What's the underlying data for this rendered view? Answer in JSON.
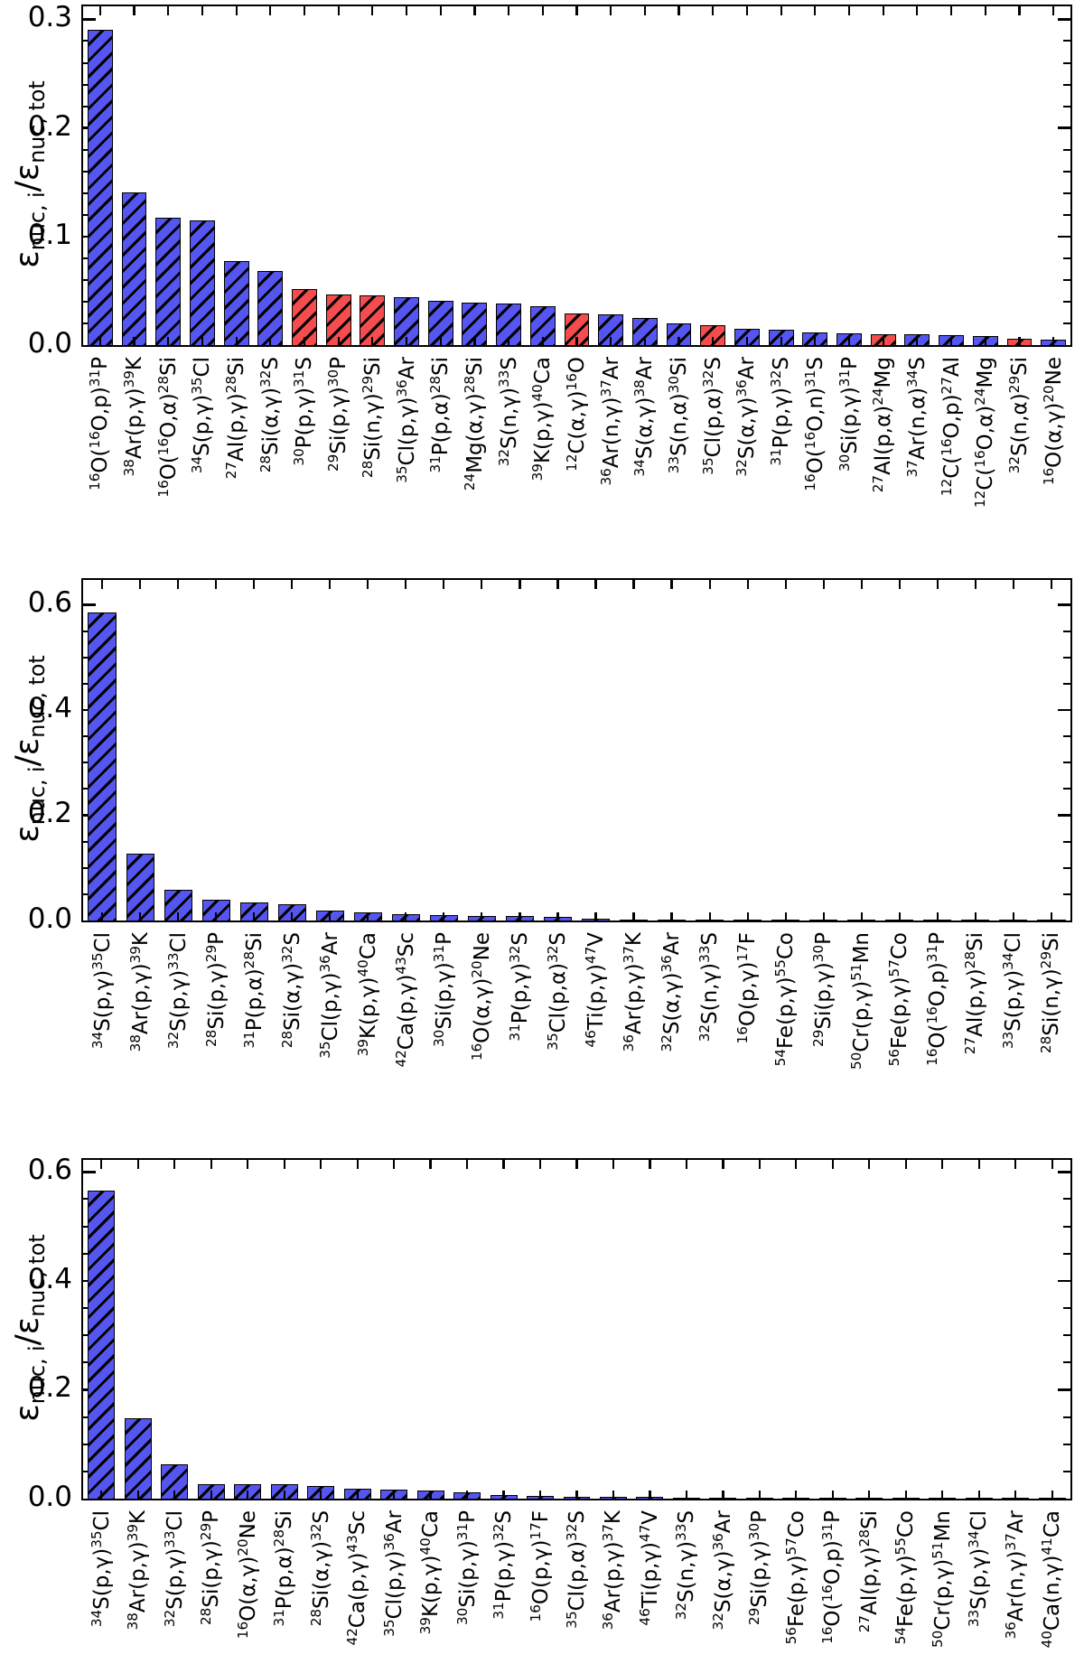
{
  "figure": {
    "background": "#ffffff",
    "axis_color": "#000000",
    "ylabel": "ε_{nuc, i}/ε_{nuc, tot}"
  },
  "colors": {
    "blue": "#5555f0",
    "red": "#f54d4d",
    "hatch": "#000000"
  },
  "chart_data": [
    {
      "type": "bar",
      "title": "",
      "xlabel": "",
      "ylabel": "ε_{nuc, i}/ε_{nuc, tot}",
      "ylim": [
        0,
        0.312
      ],
      "ytick_values": [
        0,
        0.1,
        0.2,
        0.3
      ],
      "ytick_labels": [
        "0.0",
        "0.1",
        "0.2",
        "0.3"
      ],
      "minor_tick_step": 0.02,
      "grid": false,
      "bars": [
        {
          "label": "^{16}O(^{16}O,p)^{31}P",
          "value": 0.29,
          "color": "blue"
        },
        {
          "label": "^{38}Ar(p,γ)^{39}K",
          "value": 0.141,
          "color": "blue"
        },
        {
          "label": "^{16}O(^{16}O,α)^{28}Si",
          "value": 0.117,
          "color": "blue"
        },
        {
          "label": "^{34}S(p,γ)^{35}Cl",
          "value": 0.115,
          "color": "blue"
        },
        {
          "label": "^{27}Al(p,γ)^{28}Si",
          "value": 0.077,
          "color": "blue"
        },
        {
          "label": "^{28}Si(α,γ)^{32}S",
          "value": 0.068,
          "color": "blue"
        },
        {
          "label": "^{30}P(p,γ)^{31}S",
          "value": 0.052,
          "color": "red"
        },
        {
          "label": "^{29}Si(p,γ)^{30}P",
          "value": 0.047,
          "color": "red"
        },
        {
          "label": "^{28}Si(n,γ)^{29}Si",
          "value": 0.046,
          "color": "red"
        },
        {
          "label": "^{35}Cl(p,γ)^{36}Ar",
          "value": 0.044,
          "color": "blue"
        },
        {
          "label": "^{31}P(p,α)^{28}Si",
          "value": 0.041,
          "color": "blue"
        },
        {
          "label": "^{24}Mg(α,γ)^{28}Si",
          "value": 0.039,
          "color": "blue"
        },
        {
          "label": "^{32}S(n,γ)^{33}S",
          "value": 0.038,
          "color": "blue"
        },
        {
          "label": "^{39}K(p,γ)^{40}Ca",
          "value": 0.036,
          "color": "blue"
        },
        {
          "label": "^{12}C(α,γ)^{16}O",
          "value": 0.029,
          "color": "red"
        },
        {
          "label": "^{36}Ar(n,γ)^{37}Ar",
          "value": 0.028,
          "color": "blue"
        },
        {
          "label": "^{34}S(α,γ)^{38}Ar",
          "value": 0.025,
          "color": "blue"
        },
        {
          "label": "^{33}S(n,α)^{30}Si",
          "value": 0.02,
          "color": "blue"
        },
        {
          "label": "^{35}Cl(p,α)^{32}S",
          "value": 0.018,
          "color": "red"
        },
        {
          "label": "^{32}S(α,γ)^{36}Ar",
          "value": 0.015,
          "color": "blue"
        },
        {
          "label": "^{31}P(p,γ)^{32}S",
          "value": 0.014,
          "color": "blue"
        },
        {
          "label": "^{16}O(^{16}O,n)^{31}S",
          "value": 0.012,
          "color": "blue"
        },
        {
          "label": "^{30}Si(p,γ)^{31}P",
          "value": 0.011,
          "color": "blue"
        },
        {
          "label": "^{27}Al(p,α)^{24}Mg",
          "value": 0.01,
          "color": "red"
        },
        {
          "label": "^{37}Ar(n,α)^{34}S",
          "value": 0.01,
          "color": "blue"
        },
        {
          "label": "^{12}C(^{16}O,p)^{27}Al",
          "value": 0.009,
          "color": "blue"
        },
        {
          "label": "^{12}C(^{16}O,α)^{24}Mg",
          "value": 0.008,
          "color": "blue"
        },
        {
          "label": "^{32}S(n,α)^{29}Si",
          "value": 0.006,
          "color": "red"
        },
        {
          "label": "^{16}O(α,γ)^{20}Ne",
          "value": 0.005,
          "color": "blue"
        }
      ]
    },
    {
      "type": "bar",
      "title": "",
      "xlabel": "",
      "ylabel": "ε_{nuc, i}/ε_{nuc, tot}",
      "ylim": [
        0,
        0.647
      ],
      "ytick_values": [
        0,
        0.2,
        0.4,
        0.6
      ],
      "ytick_labels": [
        "0.0",
        "0.2",
        "0.4",
        "0.6"
      ],
      "minor_tick_step": 0.05,
      "grid": false,
      "bars": [
        {
          "label": "^{34}S(p,γ)^{35}Cl",
          "value": 0.585,
          "color": "blue"
        },
        {
          "label": "^{38}Ar(p,γ)^{39}K",
          "value": 0.127,
          "color": "blue"
        },
        {
          "label": "^{32}S(p,γ)^{33}Cl",
          "value": 0.059,
          "color": "blue"
        },
        {
          "label": "^{28}Si(p,γ)^{29}P",
          "value": 0.039,
          "color": "blue"
        },
        {
          "label": "^{31}P(p,α)^{28}Si",
          "value": 0.035,
          "color": "blue"
        },
        {
          "label": "^{28}Si(α,γ)^{32}S",
          "value": 0.031,
          "color": "blue"
        },
        {
          "label": "^{35}Cl(p,γ)^{36}Ar",
          "value": 0.019,
          "color": "blue"
        },
        {
          "label": "^{39}K(p,γ)^{40}Ca",
          "value": 0.015,
          "color": "blue"
        },
        {
          "label": "^{42}Ca(p,γ)^{43}Sc",
          "value": 0.012,
          "color": "blue"
        },
        {
          "label": "^{30}Si(p,γ)^{31}P",
          "value": 0.01,
          "color": "blue"
        },
        {
          "label": "^{16}O(α,γ)^{20}Ne",
          "value": 0.009,
          "color": "blue"
        },
        {
          "label": "^{31}P(p,γ)^{32}S",
          "value": 0.008,
          "color": "blue"
        },
        {
          "label": "^{35}Cl(p,α)^{32}S",
          "value": 0.007,
          "color": "blue"
        },
        {
          "label": "^{46}Ti(p,γ)^{47}V",
          "value": 0.003,
          "color": "blue"
        },
        {
          "label": "^{36}Ar(p,γ)^{37}K",
          "value": 0.0025,
          "color": "blue"
        },
        {
          "label": "^{32}S(α,γ)^{36}Ar",
          "value": 0.002,
          "color": "blue"
        },
        {
          "label": "^{32}S(n,γ)^{33}S",
          "value": 0.002,
          "color": "blue"
        },
        {
          "label": "^{16}O(p,γ)^{17}F",
          "value": 0.002,
          "color": "blue"
        },
        {
          "label": "^{54}Fe(p,γ)^{55}Co",
          "value": 0.001,
          "color": "blue"
        },
        {
          "label": "^{29}Si(p,γ)^{30}P",
          "value": 0.001,
          "color": "blue"
        },
        {
          "label": "^{50}Cr(p,γ)^{51}Mn",
          "value": 0.0008,
          "color": "blue"
        },
        {
          "label": "^{56}Fe(p,γ)^{57}Co",
          "value": 0.0006,
          "color": "blue"
        },
        {
          "label": "^{16}O(^{16}O,p)^{31}P",
          "value": 0.0005,
          "color": "blue"
        },
        {
          "label": "^{27}Al(p,γ)^{28}Si",
          "value": 0.0004,
          "color": "blue"
        },
        {
          "label": "^{33}S(p,γ)^{34}Cl",
          "value": 0.0003,
          "color": "blue"
        },
        {
          "label": "^{28}Si(n,γ)^{29}Si",
          "value": 0.0003,
          "color": "blue"
        }
      ]
    },
    {
      "type": "bar",
      "title": "",
      "xlabel": "",
      "ylabel": "ε_{nuc, i}/ε_{nuc, tot}",
      "ylim": [
        0,
        0.622
      ],
      "ytick_values": [
        0,
        0.2,
        0.4,
        0.6
      ],
      "ytick_labels": [
        "0.0",
        "0.2",
        "0.4",
        "0.6"
      ],
      "minor_tick_step": 0.05,
      "grid": false,
      "bars": [
        {
          "label": "^{34}S(p,γ)^{35}Cl",
          "value": 0.565,
          "color": "blue"
        },
        {
          "label": "^{38}Ar(p,γ)^{39}K",
          "value": 0.148,
          "color": "blue"
        },
        {
          "label": "^{32}S(p,γ)^{33}Cl",
          "value": 0.063,
          "color": "blue"
        },
        {
          "label": "^{28}Si(p,γ)^{29}P",
          "value": 0.027,
          "color": "blue"
        },
        {
          "label": "^{16}O(α,γ)^{20}Ne",
          "value": 0.027,
          "color": "blue"
        },
        {
          "label": "^{31}P(p,α)^{28}Si",
          "value": 0.026,
          "color": "blue"
        },
        {
          "label": "^{28}Si(α,γ)^{32}S",
          "value": 0.024,
          "color": "blue"
        },
        {
          "label": "^{42}Ca(p,γ)^{43}Sc",
          "value": 0.019,
          "color": "blue"
        },
        {
          "label": "^{35}Cl(p,γ)^{36}Ar",
          "value": 0.016,
          "color": "blue"
        },
        {
          "label": "^{39}K(p,γ)^{40}Ca",
          "value": 0.015,
          "color": "blue"
        },
        {
          "label": "^{30}Si(p,γ)^{31}P",
          "value": 0.012,
          "color": "blue"
        },
        {
          "label": "^{31}P(p,γ)^{32}S",
          "value": 0.007,
          "color": "blue"
        },
        {
          "label": "^{16}O(p,γ)^{17}F",
          "value": 0.005,
          "color": "blue"
        },
        {
          "label": "^{35}Cl(p,α)^{32}S",
          "value": 0.004,
          "color": "blue"
        },
        {
          "label": "^{36}Ar(p,γ)^{37}K",
          "value": 0.003,
          "color": "blue"
        },
        {
          "label": "^{46}Ti(p,γ)^{47}V",
          "value": 0.003,
          "color": "blue"
        },
        {
          "label": "^{32}S(n,γ)^{33}S",
          "value": 0.0025,
          "color": "blue"
        },
        {
          "label": "^{32}S(α,γ)^{36}Ar",
          "value": 0.002,
          "color": "blue"
        },
        {
          "label": "^{29}Si(p,γ)^{30}P",
          "value": 0.002,
          "color": "blue"
        },
        {
          "label": "^{56}Fe(p,γ)^{57}Co",
          "value": 0.0015,
          "color": "blue"
        },
        {
          "label": "^{16}O(^{16}O,p)^{31}P",
          "value": 0.0012,
          "color": "blue"
        },
        {
          "label": "^{27}Al(p,γ)^{28}Si",
          "value": 0.001,
          "color": "blue"
        },
        {
          "label": "^{54}Fe(p,γ)^{55}Co",
          "value": 0.001,
          "color": "blue"
        },
        {
          "label": "^{50}Cr(p,γ)^{51}Mn",
          "value": 0.0008,
          "color": "blue"
        },
        {
          "label": "^{33}S(p,γ)^{34}Cl",
          "value": 0.0006,
          "color": "blue"
        },
        {
          "label": "^{36}Ar(n,γ)^{37}Ar",
          "value": 0.0005,
          "color": "blue"
        },
        {
          "label": "^{40}Ca(n,γ)^{41}Ca",
          "value": 0.0004,
          "color": "blue"
        }
      ]
    }
  ]
}
